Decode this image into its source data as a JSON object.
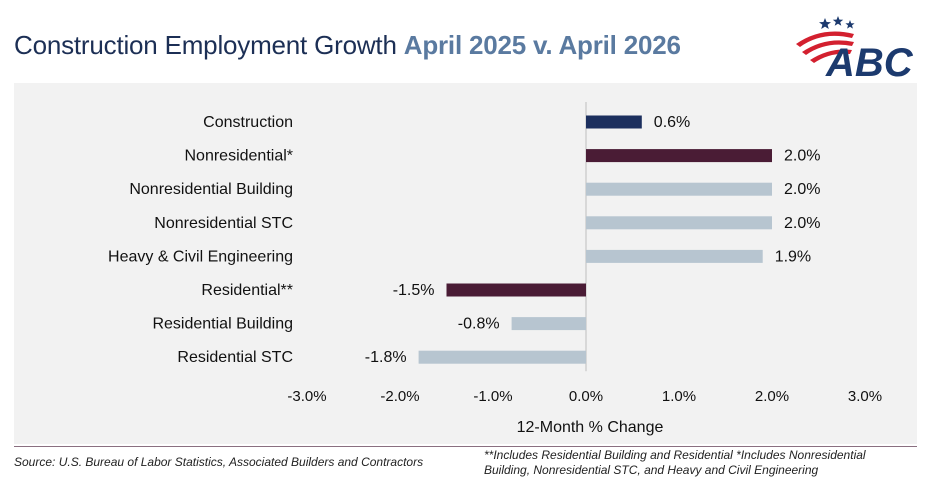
{
  "header": {
    "title": "Construction Employment Growth",
    "subtitle": "April 2025 v. April 2026"
  },
  "logo": {
    "text": "ABC",
    "colors": {
      "navy": "#1c3a6e",
      "red": "#d3202f"
    }
  },
  "chart_data": {
    "type": "bar",
    "orientation": "horizontal",
    "categories": [
      "Construction",
      "Nonresidential*",
      "Nonresidential Building",
      "Nonresidential STC",
      "Heavy & Civil Engineering",
      "Residential**",
      "Residential Building",
      "Residential STC"
    ],
    "values": [
      0.6,
      2.0,
      2.0,
      2.0,
      1.9,
      -1.5,
      -0.8,
      -1.8
    ],
    "value_labels": [
      "0.6%",
      "2.0%",
      "2.0%",
      "2.0%",
      "1.9%",
      "-1.5%",
      "-0.8%",
      "-1.8%"
    ],
    "bar_colors": [
      "#1c2f5e",
      "#4a1c35",
      "#b7c5d0",
      "#b7c5d0",
      "#b7c5d0",
      "#4a1c35",
      "#b7c5d0",
      "#b7c5d0"
    ],
    "xlim": [
      -3.0,
      3.0
    ],
    "xticks": [
      -3.0,
      -2.0,
      -1.0,
      0.0,
      1.0,
      2.0,
      3.0
    ],
    "xtick_labels": [
      "-3.0%",
      "-2.0%",
      "-1.0%",
      "0.0%",
      "1.0%",
      "2.0%",
      "3.0%"
    ],
    "xlabel": "12-Month % Change",
    "grid": false,
    "background": "#f2f2f2"
  },
  "footer": {
    "source": "Source: U.S. Bureau of Labor Statistics, Associated Builders and Contractors",
    "footnote": "**Includes Residential Building and Residential *Includes Nonresidential Building, Nonresidential STC, and Heavy and Civil Engineering"
  }
}
